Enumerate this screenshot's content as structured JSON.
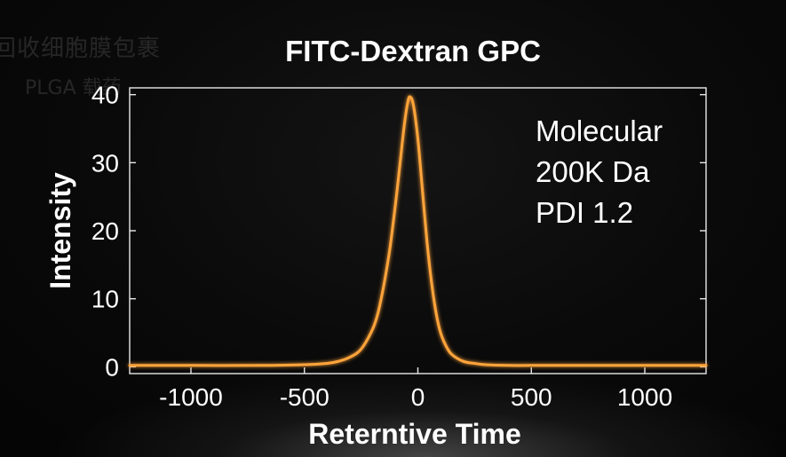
{
  "background_text": {
    "line1": "回收细胞膜包裹",
    "line2": "PLGA 载药"
  },
  "colors": {
    "curve": "#ffa43a",
    "axes": "#e8e8e8",
    "text": "#ffffff"
  },
  "chart_data": {
    "type": "line",
    "title": "FITC-Dextran GPC",
    "xlabel": "Reterntive Time",
    "ylabel": "Intensity",
    "xlim": [
      -1270,
      1270
    ],
    "ylim": [
      -1,
      41
    ],
    "xticks": [
      -1000,
      -500,
      0,
      500,
      1000
    ],
    "xtick_labels": [
      "-1000",
      "-500",
      "0",
      "500",
      "1000"
    ],
    "yticks": [
      0,
      10,
      20,
      30,
      40
    ],
    "ytick_labels": [
      "0",
      "10",
      "20",
      "30",
      "40"
    ],
    "annotations": [
      "Molecular",
      "200K Da",
      "PDI 1.2"
    ],
    "series": [
      {
        "name": "FITC-Dextran",
        "x": [
          -1270,
          -1000,
          -700,
          -500,
          -400,
          -350,
          -300,
          -250,
          -200,
          -175,
          -150,
          -125,
          -100,
          -80,
          -60,
          -45,
          -35,
          -20,
          0,
          20,
          40,
          60,
          80,
          100,
          125,
          150,
          200,
          250,
          300,
          400,
          500,
          700,
          1000,
          1270
        ],
        "y": [
          0.2,
          0.2,
          0.2,
          0.3,
          0.5,
          0.8,
          1.4,
          2.6,
          5.5,
          8.0,
          12.0,
          17.0,
          23.5,
          29.5,
          35.5,
          38.8,
          39.7,
          38.5,
          33.5,
          26.0,
          18.5,
          12.5,
          8.0,
          5.0,
          3.0,
          1.8,
          0.8,
          0.5,
          0.3,
          0.2,
          0.2,
          0.2,
          0.2,
          0.2
        ]
      }
    ]
  }
}
